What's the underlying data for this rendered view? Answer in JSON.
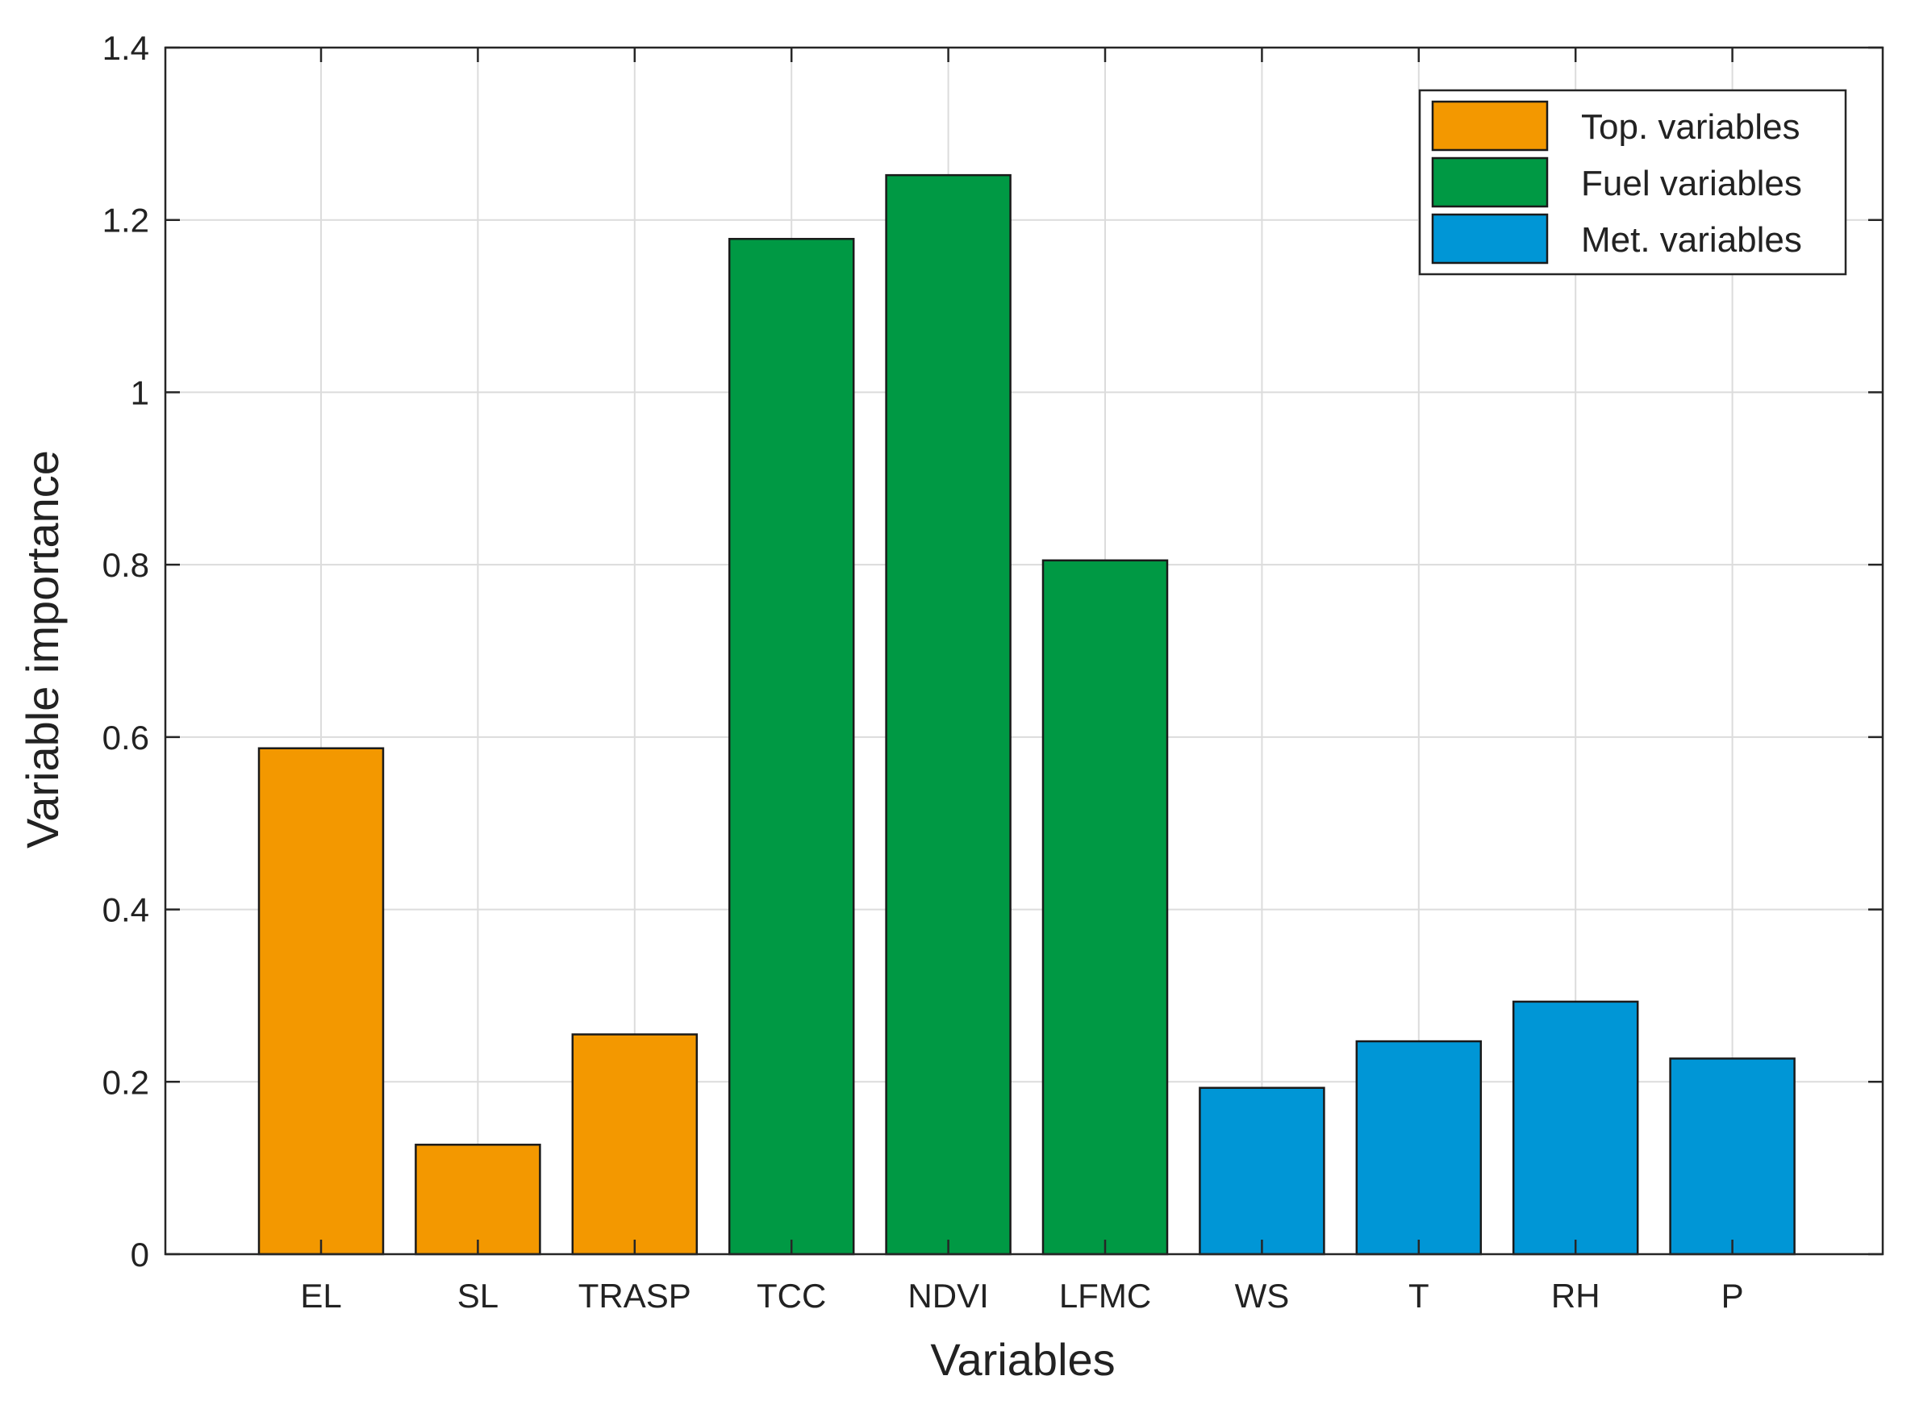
{
  "chart_data": {
    "type": "bar",
    "title": "",
    "xlabel": "Variables",
    "ylabel": "Variable importance",
    "ylim": [
      0,
      1.4
    ],
    "yticks": [
      0,
      0.2,
      0.4,
      0.6,
      0.8,
      1,
      1.2,
      1.4
    ],
    "ytick_labels": [
      "0",
      "0.2",
      "0.4",
      "0.6",
      "0.8",
      "1",
      "1.2",
      "1.4"
    ],
    "grid": true,
    "legend_position": "top-right",
    "categories": [
      "EL",
      "SL",
      "TRASP",
      "TCC",
      "NDVI",
      "LFMC",
      "WS",
      "T",
      "RH",
      "P"
    ],
    "values": [
      0.587,
      0.127,
      0.255,
      1.178,
      1.252,
      0.805,
      0.193,
      0.247,
      0.293,
      0.227
    ],
    "groups": [
      "Top. variables",
      "Top. variables",
      "Top. variables",
      "Fuel variables",
      "Fuel variables",
      "Fuel variables",
      "Met. variables",
      "Met. variables",
      "Met. variables",
      "Met. variables"
    ],
    "legend": [
      {
        "label": "Top. variables",
        "color": "#f39800"
      },
      {
        "label": "Fuel variables",
        "color": "#009944"
      },
      {
        "label": "Met. variables",
        "color": "#0096d6"
      }
    ]
  }
}
